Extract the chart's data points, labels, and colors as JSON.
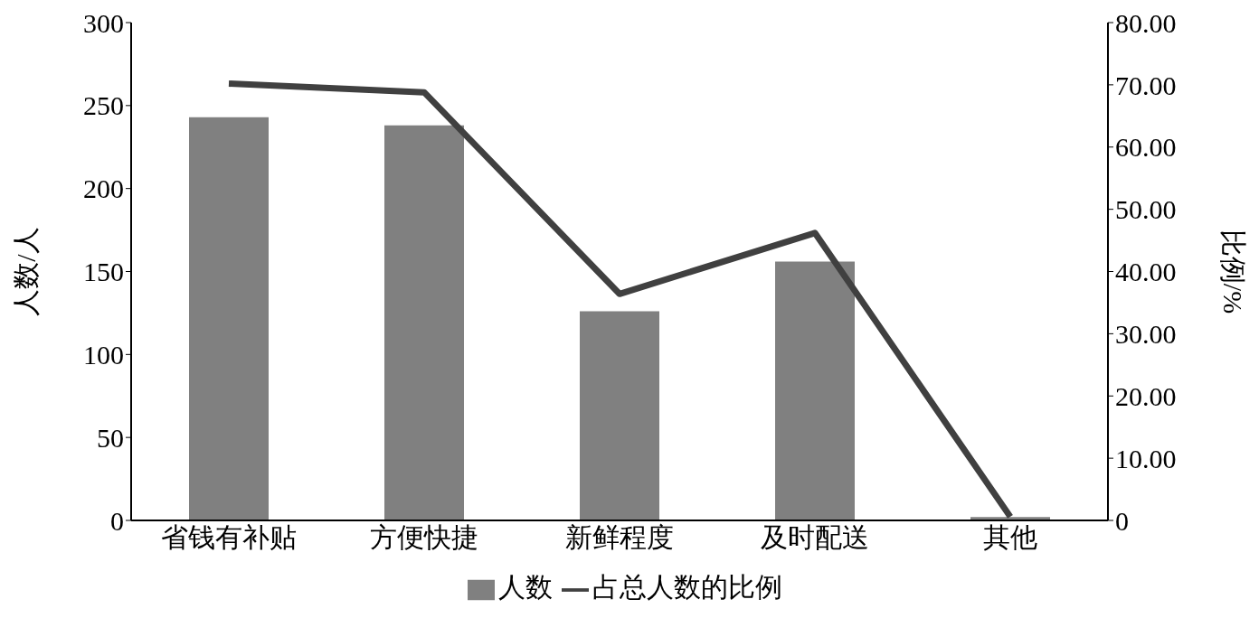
{
  "chart_data": {
    "type": "bar",
    "categories": [
      "省钱有补贴",
      "方便快捷",
      "新鲜程度",
      "及时配送",
      "其他"
    ],
    "series": [
      {
        "name": "人数",
        "color": "#808080",
        "values": [
          243,
          238,
          126,
          156,
          2
        ]
      },
      {
        "name": "占总人数的比例",
        "type": "line",
        "axis": "y2",
        "color": "#404040",
        "values": [
          70.2,
          68.8,
          36.4,
          46.2,
          0.6
        ]
      }
    ],
    "ylabel": "人数/人",
    "y2label": "比例/%",
    "ylim": [
      0,
      300
    ],
    "yticks": [
      0,
      50,
      100,
      150,
      200,
      250,
      300
    ],
    "y2lim": [
      0,
      80
    ],
    "y2ticks": [
      {
        "value": 0,
        "label": "0"
      },
      {
        "value": 10,
        "label": "10.00"
      },
      {
        "value": 20,
        "label": "20.00"
      },
      {
        "value": 30,
        "label": "30.00"
      },
      {
        "value": 40,
        "label": "40.00"
      },
      {
        "value": 50,
        "label": "50.00"
      },
      {
        "value": 60,
        "label": "60.00"
      },
      {
        "value": 70,
        "label": "70.00"
      },
      {
        "value": 80,
        "label": "80.00"
      }
    ],
    "grid": false,
    "legend": "bottom",
    "marker": "none"
  }
}
